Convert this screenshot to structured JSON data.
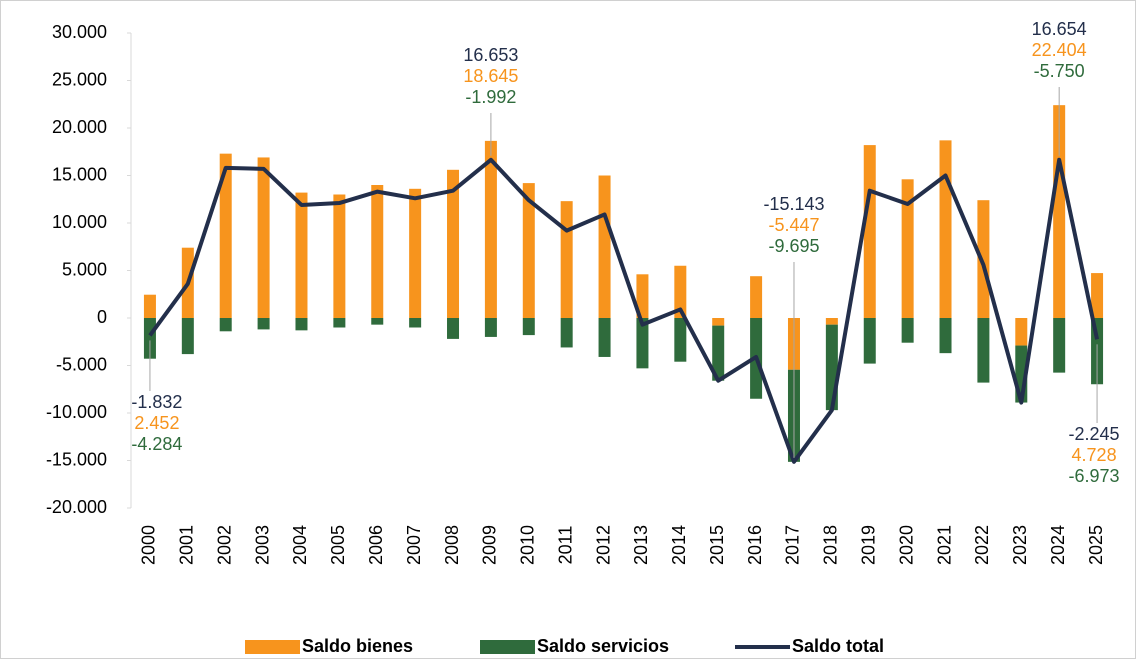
{
  "chart_data": {
    "type": "bar",
    "stacked": true,
    "grid": false,
    "categories": [
      "2000",
      "2001",
      "2002",
      "2003",
      "2004",
      "2005",
      "2006",
      "2007",
      "2008",
      "2009",
      "2010",
      "2011",
      "2012",
      "2013",
      "2014",
      "2015",
      "2016",
      "2017",
      "2018",
      "2019",
      "2020",
      "2021",
      "2022",
      "2023",
      "2024",
      "2025"
    ],
    "ylim": [
      -20000,
      30000
    ],
    "yticks": [
      {
        "value": -20000,
        "label": "-20.000"
      },
      {
        "value": -15000,
        "label": "-15.000"
      },
      {
        "value": -10000,
        "label": "-10.000"
      },
      {
        "value": -5000,
        "label": "-5.000"
      },
      0,
      {
        "value": 5000,
        "label": "5.000"
      },
      {
        "value": 10000,
        "label": "10.000"
      },
      {
        "value": 15000,
        "label": "15.000"
      },
      {
        "value": 20000,
        "label": "20.000"
      },
      {
        "value": 25000,
        "label": "25.000"
      },
      {
        "value": 30000,
        "label": "30.000"
      }
    ],
    "legend": "bottom",
    "series": [
      {
        "name": "Saldo bienes",
        "type": "bar",
        "color": "#f7941d",
        "values": [
          2452,
          7400,
          17300,
          16900,
          13200,
          13000,
          14000,
          13600,
          15600,
          18645,
          14200,
          12300,
          15000,
          4600,
          5500,
          -800,
          4400,
          -5447,
          -700,
          18200,
          14600,
          18700,
          12400,
          -2900,
          22404,
          4728
        ],
        "value_labels": [
          "2.452",
          null,
          null,
          null,
          null,
          null,
          null,
          null,
          null,
          "18.645",
          null,
          null,
          null,
          null,
          null,
          null,
          null,
          "-5.447",
          null,
          null,
          null,
          null,
          null,
          null,
          "22.404",
          "4.728"
        ]
      },
      {
        "name": "Saldo servicios",
        "type": "bar",
        "color": "#2f6b3c",
        "values": [
          -4284,
          -3800,
          -1400,
          -1200,
          -1300,
          -1000,
          -700,
          -1000,
          -2200,
          -1992,
          -1800,
          -3100,
          -4100,
          -5300,
          -4600,
          -5800,
          -8500,
          -9695,
          -9000,
          -4800,
          -2600,
          -3700,
          -6800,
          -6000,
          -5750,
          -6973
        ],
        "value_labels": [
          "-4.284",
          null,
          null,
          null,
          null,
          null,
          null,
          null,
          null,
          "-1.992",
          null,
          null,
          null,
          null,
          null,
          null,
          null,
          "-9.695",
          null,
          null,
          null,
          null,
          null,
          null,
          "-5.750",
          "-6.973"
        ]
      },
      {
        "name": "Saldo total",
        "type": "line",
        "color": "#232f4b",
        "values": [
          -1832,
          3600,
          15800,
          15700,
          11900,
          12100,
          13300,
          12600,
          13400,
          16653,
          12400,
          9200,
          10900,
          -700,
          900,
          -6600,
          -4100,
          -15143,
          -9700,
          13400,
          12000,
          15000,
          5600,
          -8900,
          16654,
          -2245
        ],
        "value_labels": [
          "-1.832",
          null,
          null,
          null,
          null,
          null,
          null,
          null,
          null,
          "16.653",
          null,
          null,
          null,
          null,
          null,
          null,
          null,
          "-15.143",
          null,
          null,
          null,
          null,
          null,
          null,
          "16.654",
          "-2.245"
        ]
      }
    ]
  }
}
